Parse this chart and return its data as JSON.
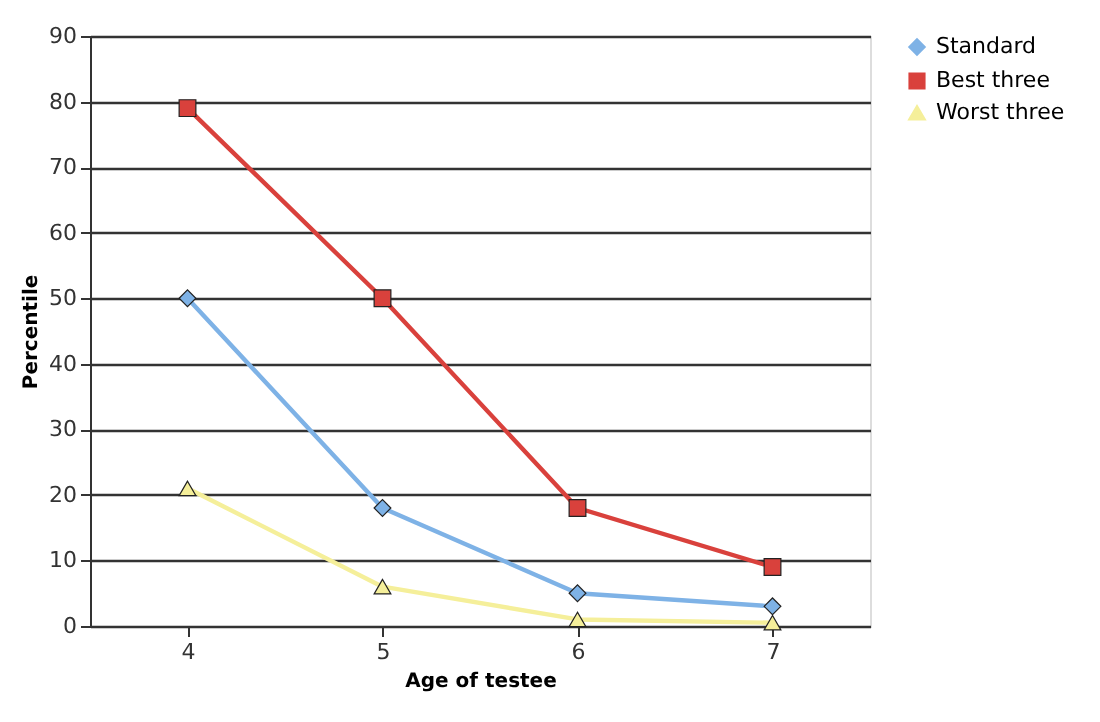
{
  "chart_data": {
    "type": "line",
    "xlabel": "Age of testee",
    "ylabel": "Percentile",
    "categories": [
      "4",
      "5",
      "6",
      "7"
    ],
    "series": [
      {
        "name": "Standard",
        "color": "#7eb2e6",
        "marker": "diamond",
        "values": [
          50,
          18,
          5,
          3
        ]
      },
      {
        "name": "Best three",
        "color": "#d9413c",
        "marker": "square",
        "values": [
          79,
          50,
          18,
          9
        ]
      },
      {
        "name": "Worst three",
        "color": "#f5ef9a",
        "marker": "triangle",
        "values": [
          21,
          6,
          1,
          0.5
        ]
      }
    ],
    "ylim": [
      0,
      90
    ],
    "yticks": [
      0,
      10,
      20,
      30,
      40,
      50,
      60,
      70,
      80,
      90
    ],
    "grid": "y",
    "legend": "right"
  }
}
